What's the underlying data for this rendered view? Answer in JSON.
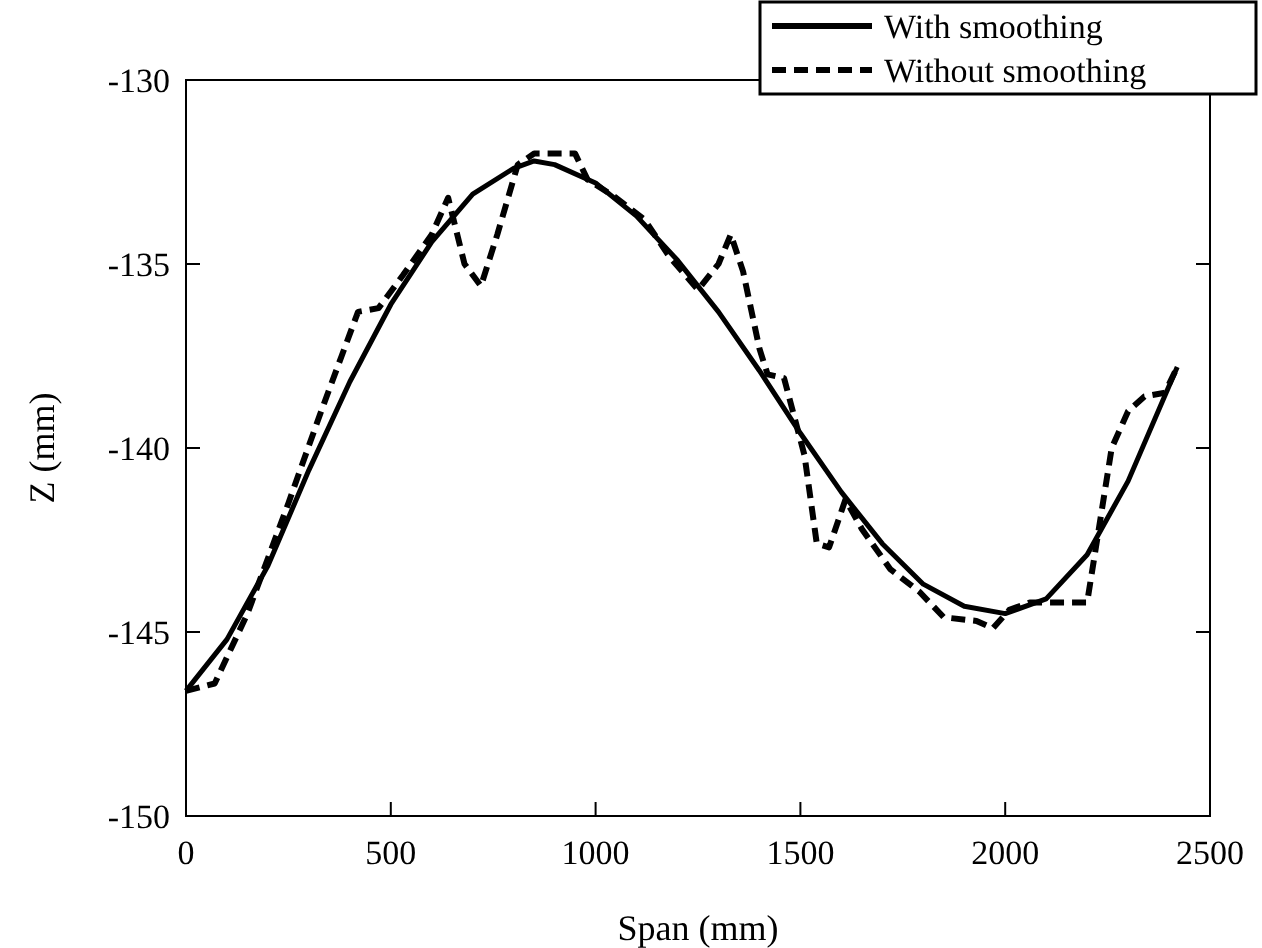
{
  "chart_data": {
    "type": "line",
    "xlabel": "Span (mm)",
    "ylabel": "Z (mm)",
    "xlim": [
      0,
      2500
    ],
    "ylim": [
      -150,
      -130
    ],
    "xticks": [
      0,
      500,
      1000,
      1500,
      2000,
      2500
    ],
    "yticks": [
      -150,
      -145,
      -140,
      -135,
      -130
    ],
    "legend": "top right",
    "grid": false,
    "marker": "none",
    "series": [
      {
        "name": "With smoothing",
        "color": "#000000",
        "line_style": "solid",
        "x": [
          0,
          100,
          200,
          300,
          400,
          500,
          600,
          700,
          800,
          850,
          900,
          1000,
          1100,
          1200,
          1300,
          1400,
          1500,
          1600,
          1700,
          1800,
          1900,
          2000,
          2100,
          2200,
          2300,
          2420
        ],
        "values": [
          -146.6,
          -145.2,
          -143.2,
          -140.6,
          -138.2,
          -136.1,
          -134.4,
          -133.1,
          -132.4,
          -132.2,
          -132.3,
          -132.8,
          -133.7,
          -134.9,
          -136.3,
          -137.9,
          -139.6,
          -141.2,
          -142.6,
          -143.7,
          -144.3,
          -144.5,
          -144.1,
          -142.9,
          -140.9,
          -137.8
        ]
      },
      {
        "name": "Without smoothing",
        "color": "#000000",
        "line_style": "dashed",
        "x": [
          0,
          70,
          150,
          250,
          330,
          380,
          420,
          470,
          530,
          600,
          640,
          680,
          720,
          760,
          810,
          850,
          950,
          980,
          1050,
          1120,
          1180,
          1250,
          1300,
          1330,
          1360,
          1400,
          1420,
          1460,
          1510,
          1540,
          1570,
          1610,
          1650,
          1720,
          1790,
          1850,
          1930,
          1970,
          2010,
          2060,
          2150,
          2200,
          2220,
          2260,
          2300,
          2340,
          2390,
          2420
        ],
        "values": [
          -146.6,
          -146.4,
          -144.5,
          -141.5,
          -139,
          -137.5,
          -136.3,
          -136.2,
          -135.3,
          -134.2,
          -133.2,
          -135,
          -135.6,
          -134.2,
          -132.3,
          -132,
          -132,
          -132.7,
          -133.2,
          -133.8,
          -134.8,
          -135.7,
          -135,
          -134.2,
          -135.2,
          -137.3,
          -138,
          -138.1,
          -140.2,
          -142.6,
          -142.7,
          -141.4,
          -142.2,
          -143.3,
          -143.9,
          -144.6,
          -144.7,
          -144.9,
          -144.4,
          -144.2,
          -144.2,
          -144.2,
          -142.8,
          -140,
          -139,
          -138.6,
          -138.5,
          -137.8
        ]
      }
    ]
  }
}
